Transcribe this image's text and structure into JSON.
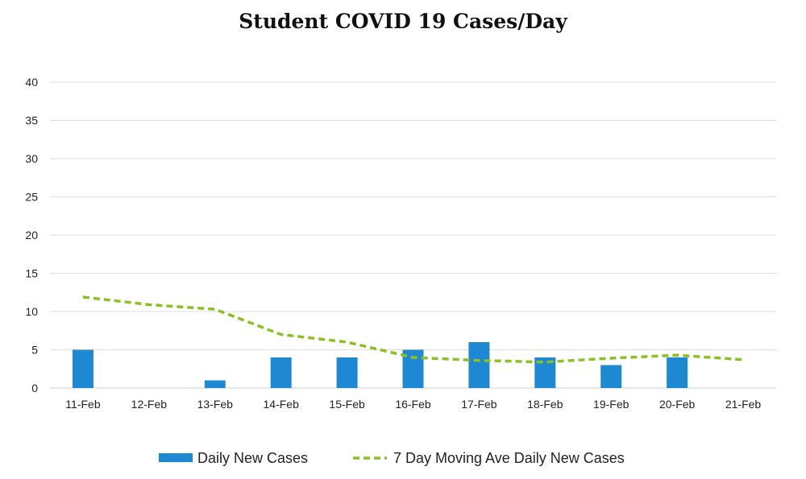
{
  "chart_data": {
    "type": "bar",
    "title": "Student COVID 19 Cases/Day",
    "categories": [
      "11-Feb",
      "12-Feb",
      "13-Feb",
      "14-Feb",
      "15-Feb",
      "16-Feb",
      "17-Feb",
      "18-Feb",
      "19-Feb",
      "20-Feb",
      "21-Feb"
    ],
    "series": [
      {
        "name": "Daily New Cases",
        "kind": "bar",
        "color": "#1f88d2",
        "values": [
          5,
          0,
          1,
          4,
          4,
          5,
          6,
          4,
          3,
          4,
          0
        ]
      },
      {
        "name": "7 Day Moving Ave Daily New Cases",
        "kind": "line",
        "style": "dashed",
        "color": "#8bc122",
        "values": [
          11.9,
          10.9,
          10.3,
          7.0,
          6.0,
          4.0,
          3.6,
          3.4,
          3.9,
          4.3,
          3.7
        ]
      }
    ],
    "ylim": [
      0,
      40
    ],
    "yticks": [
      0,
      5,
      10,
      15,
      20,
      25,
      30,
      35,
      40
    ],
    "grid": true,
    "legend": "bottom",
    "xlabel": "",
    "ylabel": ""
  }
}
